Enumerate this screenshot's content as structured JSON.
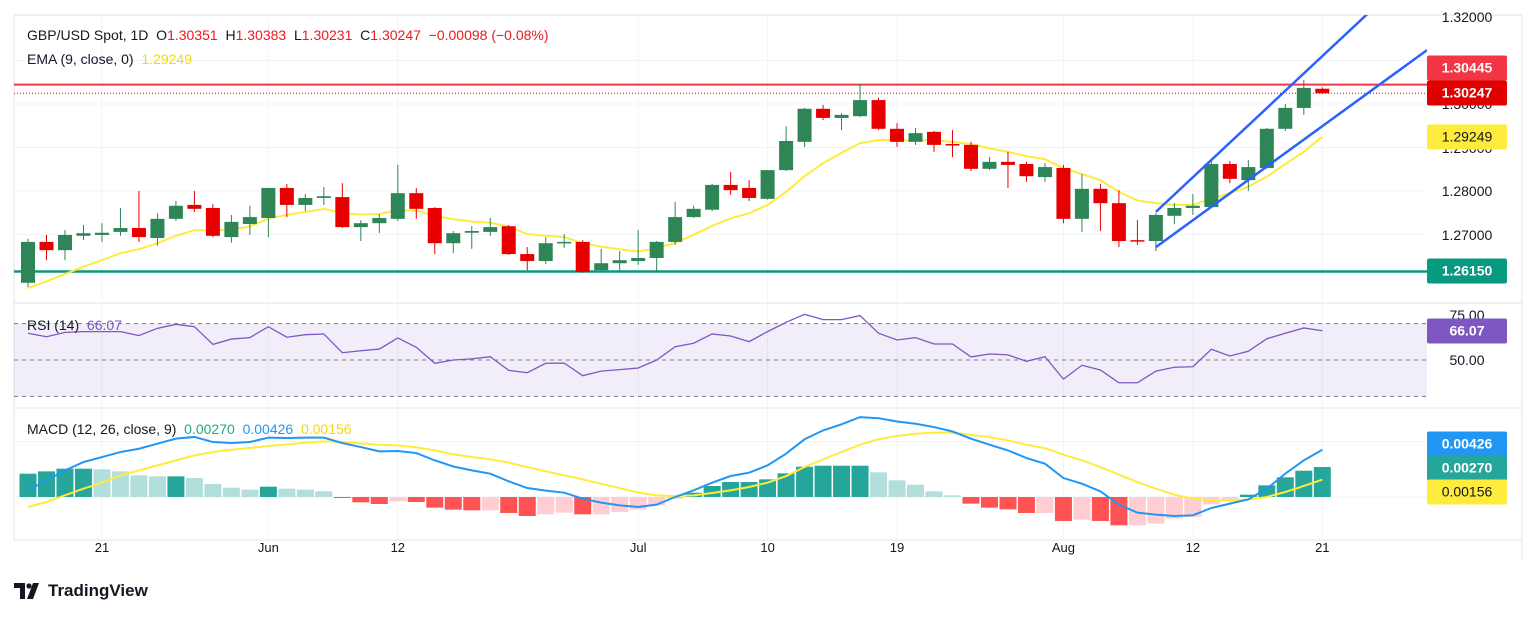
{
  "header": {
    "symbol": "GBP/USD Spot, 1D",
    "o_label": "O",
    "o": "1.30351",
    "h_label": "H",
    "h": "1.30383",
    "l_label": "L",
    "l": "1.30231",
    "c_label": "C",
    "c": "1.30247",
    "change": "−0.00098 (−0.08%)"
  },
  "ema_legend": {
    "label": "EMA (9, close, 0)",
    "value": "1.29249"
  },
  "rsi_legend": {
    "label": "RSI (14)",
    "value": "66.07"
  },
  "macd_legend": {
    "label": "MACD (12, 26, close, 9)",
    "histogram": "0.00270",
    "macd": "0.00426",
    "signal": "0.00156"
  },
  "badges": {
    "resistance": {
      "text": "1.30445",
      "color": "#f23645"
    },
    "last_price": {
      "text": "1.30247",
      "color": "#e00000"
    },
    "ema": {
      "text": "1.29249",
      "color": "#ffeb3b"
    },
    "support": {
      "text": "1.26150",
      "color": "#089981"
    },
    "rsi": {
      "text": "66.07",
      "color": "#7e57c2"
    },
    "macd": {
      "text": "0.00426",
      "color": "#2196f3"
    },
    "histogram": {
      "text": "0.00270",
      "color": "#26a69a"
    },
    "signal": {
      "text": "0.00156",
      "color": "#ffeb3b"
    }
  },
  "footer": {
    "brand": "TradingView"
  },
  "colors": {
    "up": "#2e8555",
    "down": "#e80000",
    "ema": "#ffeb3b",
    "channel": "#2962ff",
    "resistance": "#f23645",
    "support": "#089981",
    "rsi": "#7e57c2",
    "macd": "#2196f3",
    "signal": "#ffeb3b",
    "hist_up_strong": "#26a69a",
    "hist_up_weak": "#b2dfdb",
    "hist_down_strong": "#ff5252",
    "hist_down_weak": "#ffcdd2"
  },
  "chart_data": [
    {
      "type": "candlestick",
      "title": "GBP/USD Spot, 1D",
      "dates": [
        "May 15",
        "May 16",
        "May 17",
        "May 20",
        "May 21",
        "May 22",
        "May 23",
        "May 24",
        "May 27",
        "May 28",
        "May 29",
        "May 30",
        "May 31",
        "Jun 3",
        "Jun 4",
        "Jun 5",
        "Jun 6",
        "Jun 7",
        "Jun 10",
        "Jun 11",
        "Jun 12",
        "Jun 13",
        "Jun 14",
        "Jun 17",
        "Jun 18",
        "Jun 19",
        "Jun 20",
        "Jun 21",
        "Jun 24",
        "Jun 25",
        "Jun 26",
        "Jun 27",
        "Jun 28",
        "Jul 1",
        "Jul 2",
        "Jul 3",
        "Jul 4",
        "Jul 5",
        "Jul 8",
        "Jul 9",
        "Jul 10",
        "Jul 11",
        "Jul 12",
        "Jul 15",
        "Jul 16",
        "Jul 17",
        "Jul 18",
        "Jul 19",
        "Jul 22",
        "Jul 23",
        "Jul 24",
        "Jul 25",
        "Jul 26",
        "Jul 29",
        "Jul 30",
        "Jul 31",
        "Aug 1",
        "Aug 2",
        "Aug 5",
        "Aug 6",
        "Aug 7",
        "Aug 8",
        "Aug 9",
        "Aug 12",
        "Aug 13",
        "Aug 14",
        "Aug 15",
        "Aug 16",
        "Aug 19",
        "Aug 20",
        "Aug 21"
      ],
      "ohlc": [
        [
          1.2589,
          1.269,
          1.2579,
          1.2683
        ],
        [
          1.2683,
          1.2699,
          1.2641,
          1.2664
        ],
        [
          1.2664,
          1.271,
          1.2641,
          1.2699
        ],
        [
          1.2697,
          1.2722,
          1.2687,
          1.2703
        ],
        [
          1.2699,
          1.2726,
          1.2683,
          1.2704
        ],
        [
          1.2706,
          1.2761,
          1.2697,
          1.2715
        ],
        [
          1.2715,
          1.28,
          1.2683,
          1.2694
        ],
        [
          1.2692,
          1.2749,
          1.2674,
          1.2736
        ],
        [
          1.2736,
          1.2777,
          1.2731,
          1.2766
        ],
        [
          1.2768,
          1.28,
          1.2752,
          1.2759
        ],
        [
          1.2761,
          1.277,
          1.2694,
          1.2697
        ],
        [
          1.2694,
          1.2745,
          1.2681,
          1.2729
        ],
        [
          1.2724,
          1.2766,
          1.2699,
          1.274
        ],
        [
          1.2738,
          1.2807,
          1.2694,
          1.2807
        ],
        [
          1.2807,
          1.2816,
          1.274,
          1.2768
        ],
        [
          1.2768,
          1.2793,
          1.2754,
          1.2784
        ],
        [
          1.2784,
          1.2809,
          1.2768,
          1.2788
        ],
        [
          1.2786,
          1.2818,
          1.2715,
          1.2717
        ],
        [
          1.2717,
          1.2733,
          1.2685,
          1.2726
        ],
        [
          1.2726,
          1.2747,
          1.2703,
          1.2738
        ],
        [
          1.2736,
          1.286,
          1.2731,
          1.2795
        ],
        [
          1.2795,
          1.2807,
          1.2736,
          1.2759
        ],
        [
          1.2761,
          1.2763,
          1.2655,
          1.268
        ],
        [
          1.268,
          1.2708,
          1.2657,
          1.2703
        ],
        [
          1.2704,
          1.2719,
          1.2667,
          1.2708
        ],
        [
          1.2706,
          1.2738,
          1.2697,
          1.2717
        ],
        [
          1.2719,
          1.2722,
          1.2653,
          1.2655
        ],
        [
          1.2655,
          1.2671,
          1.2618,
          1.2639
        ],
        [
          1.2639,
          1.2694,
          1.2632,
          1.268
        ],
        [
          1.268,
          1.2701,
          1.2669,
          1.2683
        ],
        [
          1.2683,
          1.2687,
          1.2612,
          1.2614
        ],
        [
          1.2618,
          1.2667,
          1.2612,
          1.2634
        ],
        [
          1.2634,
          1.2662,
          1.2614,
          1.2641
        ],
        [
          1.2639,
          1.271,
          1.263,
          1.2646
        ],
        [
          1.2646,
          1.2685,
          1.2612,
          1.2683
        ],
        [
          1.2683,
          1.2775,
          1.2676,
          1.274
        ],
        [
          1.274,
          1.2766,
          1.2738,
          1.2759
        ],
        [
          1.2757,
          1.2816,
          1.2754,
          1.2814
        ],
        [
          1.2814,
          1.2844,
          1.2791,
          1.2802
        ],
        [
          1.2807,
          1.2825,
          1.2777,
          1.2784
        ],
        [
          1.2782,
          1.2848,
          1.278,
          1.2848
        ],
        [
          1.2848,
          1.2949,
          1.2846,
          1.2915
        ],
        [
          1.2913,
          1.2991,
          1.2901,
          1.2989
        ],
        [
          1.2989,
          1.2998,
          1.2963,
          1.2968
        ],
        [
          1.2968,
          1.2979,
          1.294,
          1.2975
        ],
        [
          1.2972,
          1.3046,
          1.297,
          1.3009
        ],
        [
          1.3009,
          1.3014,
          1.294,
          1.2943
        ],
        [
          1.2943,
          1.2956,
          1.2901,
          1.2913
        ],
        [
          1.2913,
          1.2945,
          1.2906,
          1.2933
        ],
        [
          1.2936,
          1.2938,
          1.289,
          1.2906
        ],
        [
          1.2908,
          1.294,
          1.2878,
          1.2906
        ],
        [
          1.2906,
          1.2913,
          1.2846,
          1.2851
        ],
        [
          1.2851,
          1.2878,
          1.2848,
          1.2867
        ],
        [
          1.2867,
          1.289,
          1.2807,
          1.286
        ],
        [
          1.2862,
          1.2867,
          1.2821,
          1.2834
        ],
        [
          1.2832,
          1.2864,
          1.2821,
          1.2855
        ],
        [
          1.2853,
          1.286,
          1.2726,
          1.2736
        ],
        [
          1.2736,
          1.2839,
          1.2706,
          1.2805
        ],
        [
          1.2805,
          1.2816,
          1.2708,
          1.2772
        ],
        [
          1.2772,
          1.2802,
          1.2671,
          1.2685
        ],
        [
          1.2687,
          1.2733,
          1.2676,
          1.2685
        ],
        [
          1.2685,
          1.2749,
          1.2662,
          1.2745
        ],
        [
          1.2743,
          1.2772,
          1.2724,
          1.2761
        ],
        [
          1.2761,
          1.2793,
          1.2745,
          1.2766
        ],
        [
          1.2763,
          1.2871,
          1.2761,
          1.2862
        ],
        [
          1.2862,
          1.2869,
          1.2818,
          1.2828
        ],
        [
          1.2825,
          1.2871,
          1.28,
          1.2855
        ],
        [
          1.2853,
          1.2945,
          1.2851,
          1.2943
        ],
        [
          1.2943,
          1.3,
          1.2938,
          1.2991
        ],
        [
          1.2991,
          1.3055,
          1.2975,
          1.3037
        ],
        [
          1.30351,
          1.30383,
          1.30231,
          1.30247
        ]
      ],
      "ema9": [
        1.2577,
        1.2592,
        1.2609,
        1.2626,
        1.2641,
        1.2657,
        1.2666,
        1.268,
        1.2697,
        1.271,
        1.2709,
        1.2712,
        1.2718,
        1.2737,
        1.2745,
        1.2752,
        1.2759,
        1.2749,
        1.2746,
        1.2747,
        1.2756,
        1.2755,
        1.2743,
        1.2735,
        1.273,
        1.2727,
        1.2718,
        1.2701,
        1.2697,
        1.2694,
        1.268,
        1.2672,
        1.2666,
        1.2661,
        1.2668,
        1.2681,
        1.2699,
        1.272,
        1.2737,
        1.2749,
        1.2768,
        1.2798,
        1.2834,
        1.2864,
        1.2888,
        1.291,
        1.2917,
        1.2917,
        1.2916,
        1.2917,
        1.2913,
        1.2908,
        1.2898,
        1.289,
        1.288,
        1.2873,
        1.2852,
        1.2839,
        1.2825,
        1.2798,
        1.2778,
        1.2772,
        1.2768,
        1.2768,
        1.2783,
        1.2795,
        1.281,
        1.2833,
        1.2862,
        1.289,
        1.29249
      ],
      "hlines": {
        "resistance": 1.30445,
        "last_price": 1.30247,
        "support": 1.2615
      },
      "channel": {
        "upper": {
          "from": {
            "date": "Aug 8",
            "price": 1.2752
          },
          "to": {
            "date": "Aug 21",
            "price": 1.311
          }
        },
        "lower": {
          "from": {
            "date": "Aug 8",
            "price": 1.2671
          },
          "to": {
            "date": "Aug 21",
            "price": 1.2949
          }
        }
      },
      "ylim": [
        1.257,
        1.3215
      ],
      "y_ticks": [
        {
          "value": 1.32,
          "label": "1.32000"
        },
        {
          "value": 1.31,
          "label": "1.31000"
        },
        {
          "value": 1.3,
          "label": "1.30000"
        },
        {
          "value": 1.29,
          "label": "1.29000"
        },
        {
          "value": 1.28,
          "label": "1.28000"
        },
        {
          "value": 1.27,
          "label": "1.27000"
        }
      ],
      "x_ticks": [
        {
          "date": "May 21",
          "label": "21"
        },
        {
          "date": "Jun 3",
          "label": "Jun"
        },
        {
          "date": "Jun 12",
          "label": "12"
        },
        {
          "date": "Jul 1",
          "label": "Jul"
        },
        {
          "date": "Jul 10",
          "label": "10"
        },
        {
          "date": "Jul 19",
          "label": "19"
        },
        {
          "date": "Aug 1",
          "label": "Aug"
        },
        {
          "date": "Aug 12",
          "label": "12"
        },
        {
          "date": "Aug 21",
          "label": "21"
        }
      ],
      "grid": true
    },
    {
      "type": "line",
      "title": "RSI (14)",
      "values": [
        64.7,
        62.8,
        65.2,
        65.6,
        65.6,
        65.6,
        63.4,
        67.4,
        69.6,
        68.3,
        58.6,
        61.5,
        62.3,
        68.3,
        62.5,
        63.9,
        64.3,
        54.0,
        55.1,
        56.0,
        62.1,
        57.0,
        48.2,
        50.0,
        50.6,
        51.8,
        44.3,
        43.0,
        48.2,
        48.3,
        41.4,
        43.9,
        44.7,
        45.6,
        50.0,
        57.3,
        59.2,
        64.3,
        63.2,
        60.1,
        65.6,
        70.7,
        75.1,
        72.2,
        72.2,
        74.4,
        64.7,
        61.0,
        62.3,
        58.8,
        58.8,
        51.7,
        53.3,
        52.8,
        49.3,
        51.8,
        39.5,
        47.1,
        44.5,
        37.5,
        37.5,
        43.9,
        46.0,
        46.3,
        55.9,
        52.2,
        54.8,
        61.7,
        64.7,
        67.6,
        66.07
      ],
      "bands": [
        70,
        50,
        30
      ],
      "y_ticks": [
        {
          "value": 75,
          "label": "75.00"
        },
        {
          "value": 50,
          "label": "50.00"
        }
      ]
    },
    {
      "type": "macd",
      "title": "MACD (12, 26, close, 9)",
      "macd": [
        0.0006,
        0.0015,
        0.0024,
        0.00315,
        0.0036,
        0.00405,
        0.00435,
        0.0048,
        0.00526,
        0.00541,
        0.00495,
        0.00486,
        0.00495,
        0.00535,
        0.00532,
        0.00535,
        0.00535,
        0.00486,
        0.0045,
        0.00411,
        0.00414,
        0.00396,
        0.0033,
        0.00275,
        0.0024,
        0.0021,
        0.00141,
        0.00081,
        0.00057,
        0.00039,
        -0.00015,
        -0.00051,
        -0.00075,
        -0.0009,
        -0.00069,
        0,
        0.0006,
        0.00129,
        0.00189,
        0.00219,
        0.00285,
        0.0039,
        0.0052,
        0.006,
        0.00655,
        0.0072,
        0.0071,
        0.0068,
        0.0066,
        0.0063,
        0.0059,
        0.00525,
        0.00471,
        0.0042,
        0.00351,
        0.003,
        0.00171,
        0.0012,
        0.00051,
        -0.00069,
        -0.00141,
        -0.00159,
        -0.00171,
        -0.00165,
        -0.00099,
        -0.0006,
        -0.00021,
        0.00075,
        0.0021,
        0.0033,
        0.00426
      ],
      "signal": [
        -0.0009,
        -0.00045,
        0.00015,
        0.00075,
        0.00129,
        0.00195,
        0.0024,
        0.00285,
        0.0033,
        0.00375,
        0.00405,
        0.00426,
        0.00441,
        0.00459,
        0.00474,
        0.00489,
        0.00501,
        0.00495,
        0.00483,
        0.00471,
        0.00465,
        0.00447,
        0.0042,
        0.00385,
        0.0036,
        0.00339,
        0.00309,
        0.0027,
        0.00231,
        0.00195,
        0.00159,
        0.0012,
        0.00081,
        0.00039,
        0.00015,
        9e-05,
        0.00015,
        0.00036,
        0.0006,
        0.0009,
        0.00129,
        0.00189,
        0.0027,
        0.00339,
        0.00405,
        0.00471,
        0.0052,
        0.0055,
        0.0057,
        0.0058,
        0.0058,
        0.0056,
        0.0054,
        0.0051,
        0.00471,
        0.00441,
        0.00381,
        0.0033,
        0.0027,
        0.00201,
        0.00135,
        0.00075,
        0.00021,
        -0.00015,
        -0.0003,
        -0.0003,
        -0.00024,
        0,
        0.00045,
        0.001,
        0.00156
      ],
      "histogram": [
        0.0021,
        0.00231,
        0.00255,
        0.00255,
        0.00249,
        0.00231,
        0.00195,
        0.00186,
        0.00186,
        0.00171,
        0.00117,
        0.00084,
        0.00066,
        0.00093,
        0.00075,
        0.00066,
        0.00051,
        -3e-05,
        -0.00048,
        -0.00063,
        -0.00039,
        -0.00045,
        -0.00096,
        -0.00114,
        -0.0012,
        -0.0012,
        -0.00144,
        -0.00171,
        -0.00156,
        -0.00141,
        -0.00156,
        -0.00156,
        -0.00135,
        -0.00114,
        -0.00075,
        -0.00015,
        0.00039,
        0.00099,
        0.00135,
        0.00135,
        0.00159,
        0.00213,
        0.00273,
        0.00282,
        0.00282,
        0.00282,
        0.00222,
        0.0015,
        0.00111,
        0.00051,
        0.00015,
        -0.0006,
        -0.00096,
        -0.00111,
        -0.00144,
        -0.00144,
        -0.00216,
        -0.00204,
        -0.00216,
        -0.00255,
        -0.00255,
        -0.0024,
        -0.00195,
        -0.0018,
        -0.00066,
        -0.00039,
        0.00021,
        0.00105,
        0.00177,
        0.00237,
        0.0027
      ]
    }
  ]
}
